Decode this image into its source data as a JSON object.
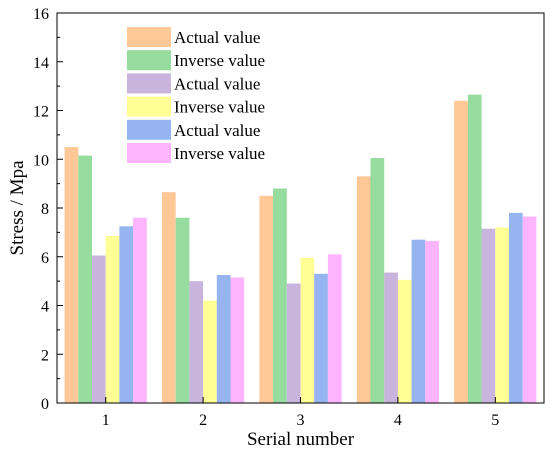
{
  "chart_data": {
    "type": "bar",
    "categories": [
      "1",
      "2",
      "3",
      "4",
      "5"
    ],
    "series": [
      {
        "name": "Actual value",
        "color": "#FFC896",
        "values": [
          10.5,
          8.65,
          8.5,
          9.3,
          12.4
        ]
      },
      {
        "name": "Inverse value",
        "color": "#96DC9E",
        "values": [
          10.15,
          7.6,
          8.8,
          10.05,
          12.65
        ]
      },
      {
        "name": "Actual value",
        "color": "#C8B4DC",
        "values": [
          6.05,
          5.0,
          4.9,
          5.35,
          7.15
        ]
      },
      {
        "name": "Inverse value",
        "color": "#FFFF96",
        "values": [
          6.85,
          4.2,
          5.95,
          5.05,
          7.2
        ]
      },
      {
        "name": "Actual value",
        "color": "#96B4F0",
        "values": [
          7.25,
          5.25,
          5.3,
          6.7,
          7.8
        ]
      },
      {
        "name": "Inverse value",
        "color": "#FFB4FF",
        "values": [
          7.6,
          5.15,
          6.1,
          6.65,
          7.65
        ]
      }
    ],
    "title": "",
    "xlabel": "Serial number",
    "ylabel": "Stress / Mpa",
    "ylim": [
      0,
      16
    ],
    "yticks": [
      0,
      2,
      4,
      6,
      8,
      10,
      12,
      14,
      16
    ],
    "grid": false,
    "legend_position": "top-left"
  }
}
